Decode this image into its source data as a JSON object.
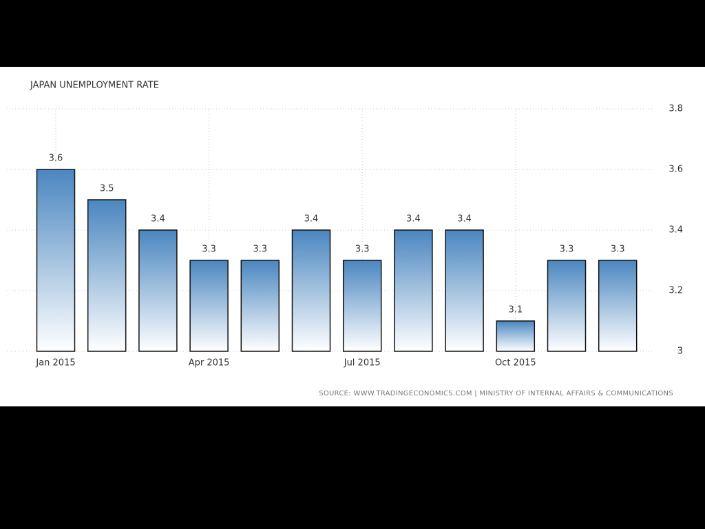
{
  "chart_data": {
    "type": "bar",
    "title": "JAPAN UNEMPLOYMENT RATE",
    "categories": [
      "Jan 2015",
      null,
      null,
      "Apr 2015",
      null,
      null,
      "Jul 2015",
      null,
      null,
      "Oct 2015",
      null,
      null
    ],
    "values": [
      3.6,
      3.5,
      3.4,
      3.3,
      3.3,
      3.4,
      3.3,
      3.4,
      3.4,
      3.1,
      3.3,
      3.3
    ],
    "color": "#4a86c0",
    "ylim": [
      3,
      3.8
    ],
    "yticks": [
      3,
      3.2,
      3.4,
      3.6,
      3.8
    ],
    "grid": true,
    "source": "SOURCE: WWW.TRADINGECONOMICS.COM | MINISTRY OF INTERNAL AFFAIRS & COMMUNICATIONS"
  }
}
